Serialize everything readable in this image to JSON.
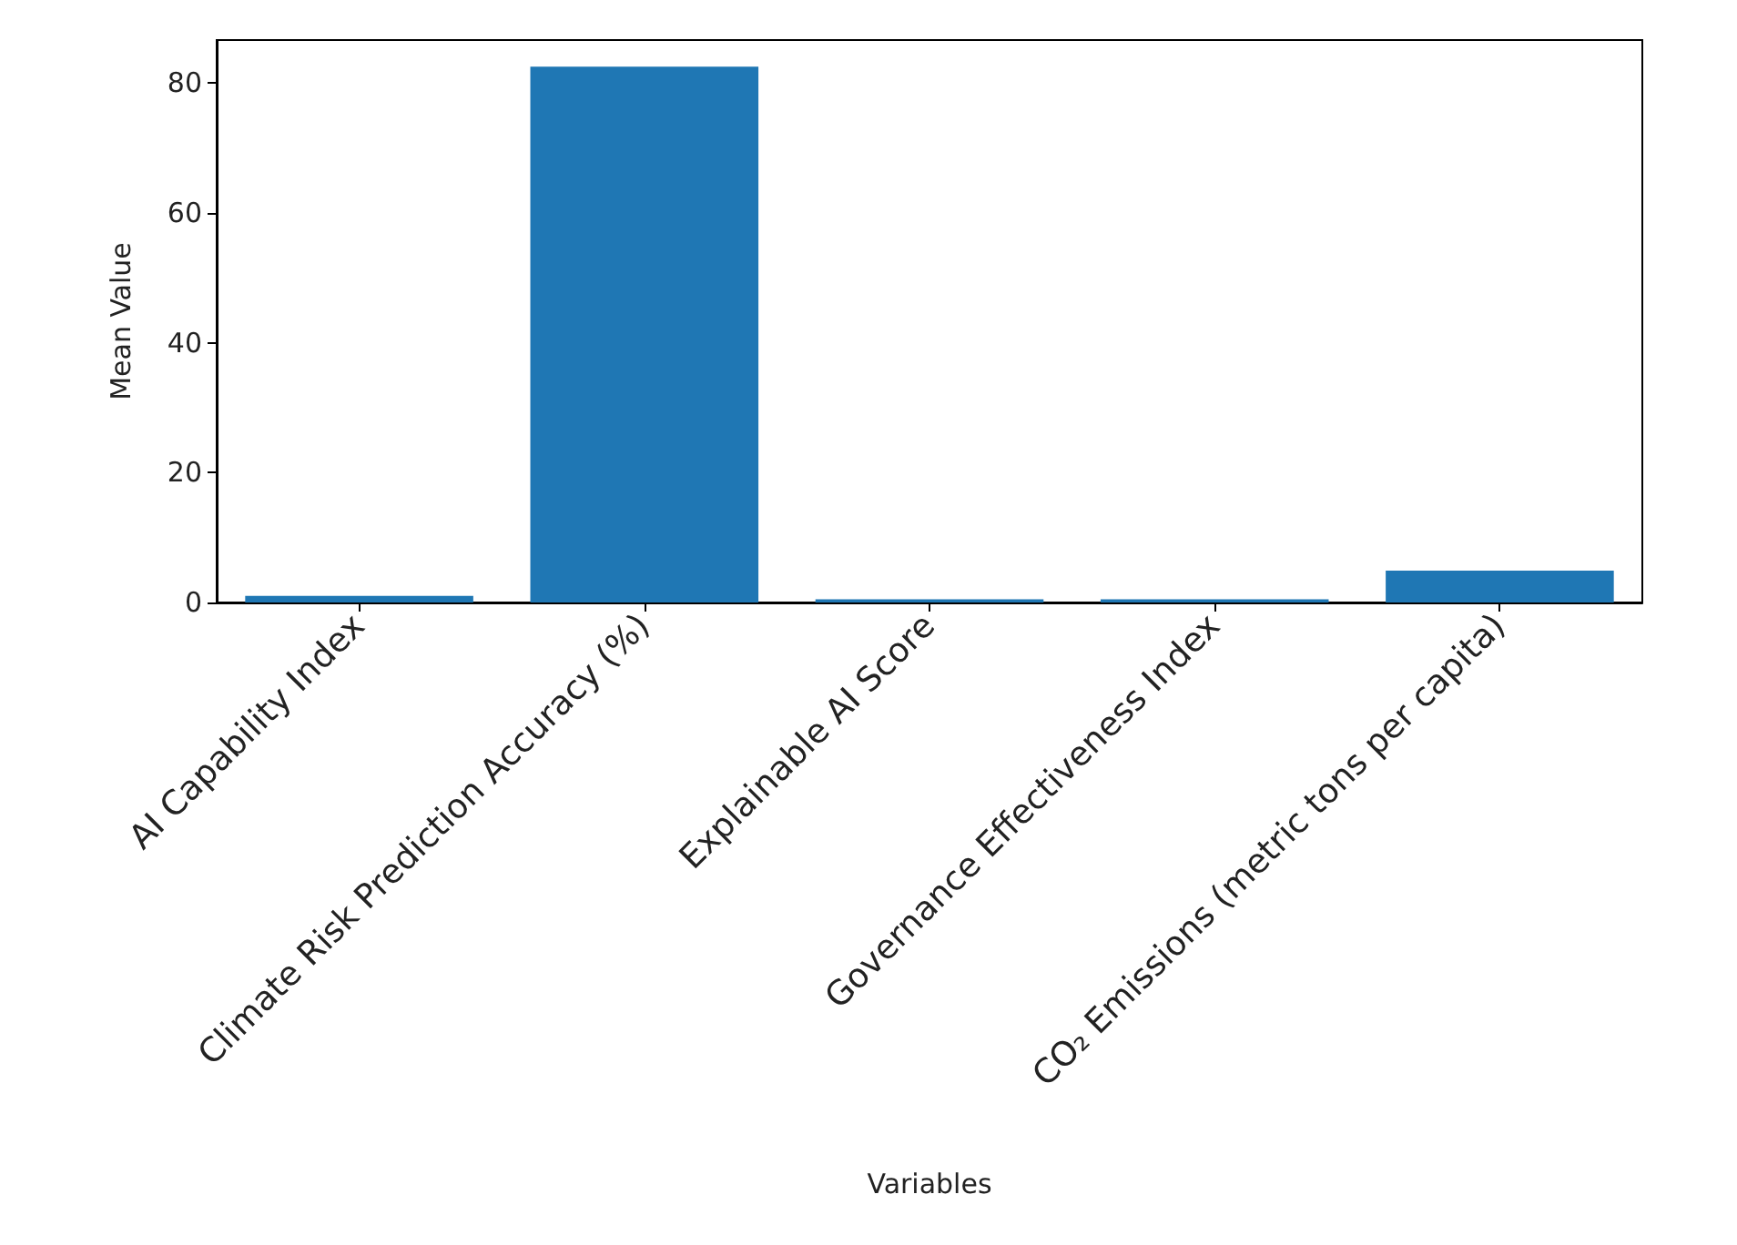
{
  "chart_data": {
    "type": "bar",
    "xlabel": "Variables",
    "ylabel": "Mean Value",
    "categories": [
      "AI Capability Index",
      "Climate Risk Prediction Accuracy (%)",
      "Explainable AI Score",
      "Governance Effectiveness Index",
      "CO₂ Emissions (metric tons per capita)"
    ],
    "values": [
      1.0,
      82.5,
      0.5,
      0.5,
      4.9
    ],
    "color": "#1f77b4",
    "ylim": [
      0,
      86.6
    ],
    "yticks": [
      0,
      20,
      40,
      60,
      80
    ],
    "grid": false
  }
}
